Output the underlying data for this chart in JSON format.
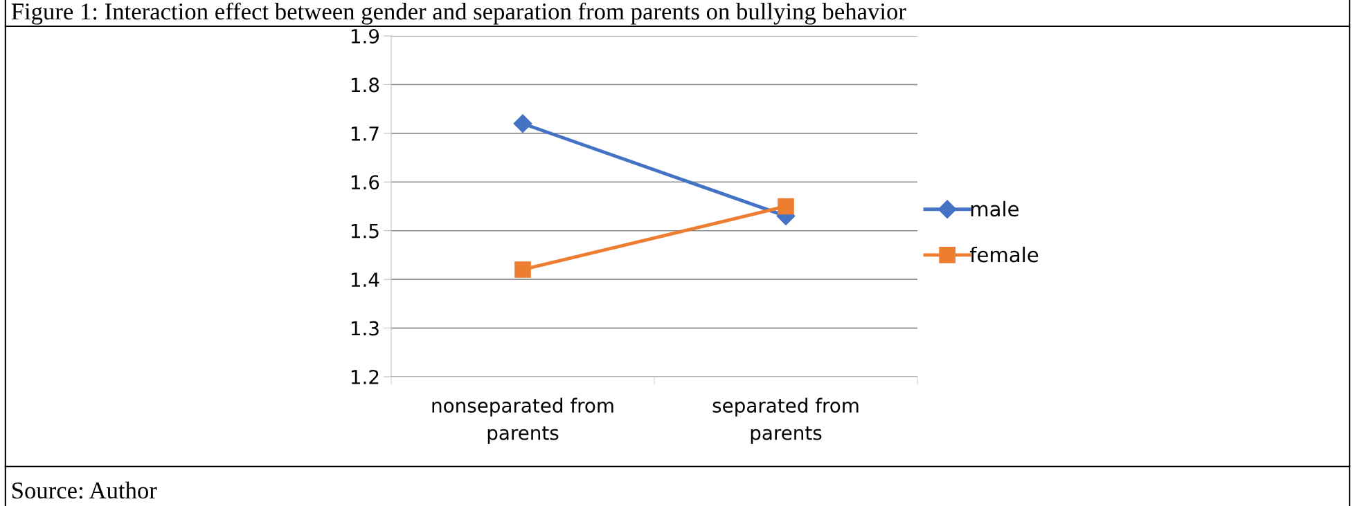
{
  "chart_data": {
    "type": "line",
    "title": "Figure 1: Interaction effect between gender and separation from parents on bullying behavior",
    "categories": [
      "nonseparated from\nparents",
      "separated from\nparents"
    ],
    "series": [
      {
        "name": "male",
        "color": "#4472c4",
        "values": [
          1.72,
          1.53
        ],
        "marker": "diamond"
      },
      {
        "name": "female",
        "color": "#ed7d31",
        "values": [
          1.42,
          1.55
        ],
        "marker": "square"
      }
    ],
    "ylim": [
      1.2,
      1.9
    ],
    "yticks": [
      1.2,
      1.3,
      1.4,
      1.5,
      1.6,
      1.7,
      1.8,
      1.9
    ],
    "grid": "y",
    "legend": "right",
    "line_style": "solid",
    "annotations": [
      "Source: Author"
    ]
  }
}
